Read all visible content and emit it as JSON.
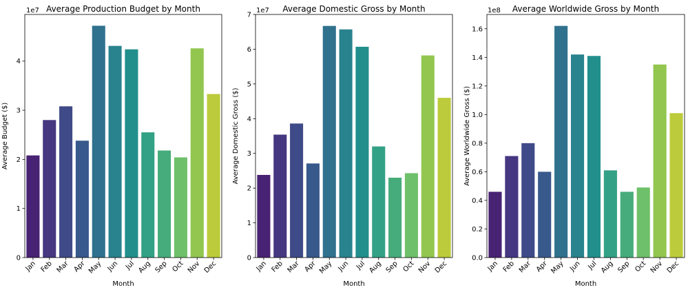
{
  "months": [
    "Jan",
    "Feb",
    "Mar",
    "Apr",
    "May",
    "Jun",
    "Jul",
    "Aug",
    "Sep",
    "Oct",
    "Nov",
    "Dec"
  ],
  "colors": [
    "#482273",
    "#463781",
    "#3f4a88",
    "#38598c",
    "#30718e",
    "#29838e",
    "#228f8d",
    "#33a185",
    "#47ac7b",
    "#6fc06a",
    "#92c64f",
    "#bccb3b"
  ],
  "chart_data": [
    {
      "type": "bar",
      "title": "Average Production Budget by Month",
      "xlabel": "Month",
      "ylabel": "Average Budget ($)",
      "multiplier": "1e7",
      "ylim": [
        0,
        4.95
      ],
      "yticks": [
        "0",
        "1",
        "2",
        "3",
        "4"
      ],
      "values": [
        2.08,
        2.8,
        3.08,
        2.38,
        4.72,
        4.31,
        4.24,
        2.55,
        2.18,
        2.04,
        4.26,
        3.33
      ]
    },
    {
      "type": "bar",
      "title": "Average Domestic Gross by Month",
      "xlabel": "Month",
      "ylabel": "Average Domestic Gross ($)",
      "multiplier": "1e7",
      "ylim": [
        0,
        7.0
      ],
      "yticks": [
        "0",
        "1",
        "2",
        "3",
        "4",
        "5",
        "6",
        "7"
      ],
      "values": [
        2.38,
        3.54,
        3.86,
        2.71,
        6.67,
        6.57,
        6.07,
        3.2,
        2.3,
        2.43,
        5.82,
        4.6
      ]
    },
    {
      "type": "bar",
      "title": "Average Worldwide Gross by Month",
      "xlabel": "Month",
      "ylabel": "Average Worldwide Gross ($)",
      "multiplier": "1e8",
      "ylim": [
        0,
        1.7
      ],
      "yticks": [
        "0.0",
        "0.2",
        "0.4",
        "0.6",
        "0.8",
        "1.0",
        "1.2",
        "1.4",
        "1.6"
      ],
      "values": [
        0.46,
        0.71,
        0.8,
        0.6,
        1.62,
        1.42,
        1.41,
        0.61,
        0.46,
        0.49,
        1.35,
        1.01
      ]
    }
  ]
}
